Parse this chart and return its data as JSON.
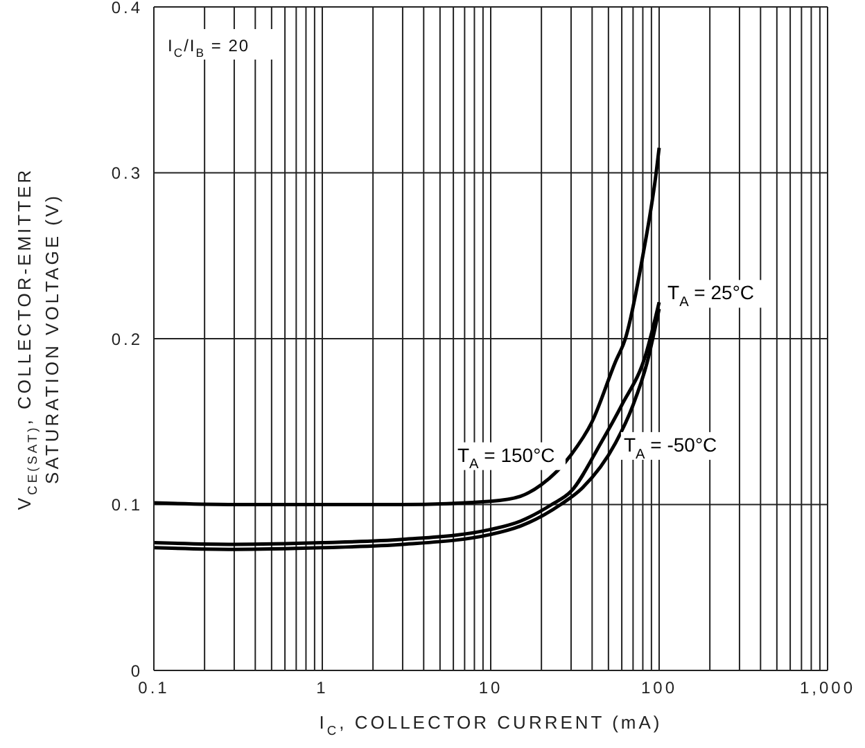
{
  "chart_data": {
    "type": "line",
    "xlabel": "I$_{C}$, COLLECTOR CURRENT (mA)",
    "ylabel": "V$_{CE(SAT)}$, COLLECTOR-EMITTER SATURATION VOLTAGE (V)",
    "annotations": [
      "I$_{C}$/I$_{B}$ = 20"
    ],
    "log": "x",
    "grid": true,
    "legend": false,
    "marker": "none",
    "line_style": "solid",
    "xlim": [
      0.1,
      1000
    ],
    "ylim": [
      0,
      0.4
    ],
    "xticks": [
      0.1,
      {
        "value": 0.2,
        "label": null
      },
      {
        "value": 0.3,
        "label": null
      },
      {
        "value": 0.4,
        "label": null
      },
      {
        "value": 0.5,
        "label": null
      },
      {
        "value": 0.6,
        "label": null
      },
      {
        "value": 0.7,
        "label": null
      },
      {
        "value": 0.8,
        "label": null
      },
      {
        "value": 0.9,
        "label": null
      },
      1,
      {
        "value": 2,
        "label": null
      },
      {
        "value": 3,
        "label": null
      },
      {
        "value": 4,
        "label": null
      },
      {
        "value": 5,
        "label": null
      },
      {
        "value": 6,
        "label": null
      },
      {
        "value": 7,
        "label": null
      },
      {
        "value": 8,
        "label": null
      },
      {
        "value": 9,
        "label": null
      },
      10,
      {
        "value": 20,
        "label": null
      },
      {
        "value": 30,
        "label": null
      },
      {
        "value": 40,
        "label": null
      },
      {
        "value": 50,
        "label": null
      },
      {
        "value": 60,
        "label": null
      },
      {
        "value": 70,
        "label": null
      },
      {
        "value": 80,
        "label": null
      },
      {
        "value": 90,
        "label": null
      },
      100,
      {
        "value": 200,
        "label": null
      },
      {
        "value": 300,
        "label": null
      },
      {
        "value": 400,
        "label": null
      },
      {
        "value": 500,
        "label": null
      },
      {
        "value": 600,
        "label": null
      },
      {
        "value": 700,
        "label": null
      },
      {
        "value": 800,
        "label": null
      },
      {
        "value": 900,
        "label": null
      },
      {
        "value": 1000,
        "label": "1,000"
      }
    ],
    "yticks": [
      0,
      0.1,
      0.2,
      0.3,
      0.4
    ],
    "series": [
      {
        "name": "T$_{A}$ = 150°C",
        "color": "#000000",
        "x": [
          0.1,
          0.3,
          1,
          3,
          10,
          15,
          20,
          30,
          40,
          55,
          63,
          80,
          96,
          100
        ],
        "values": [
          0.101,
          0.1,
          0.1,
          0.1,
          0.102,
          0.105,
          0.112,
          0.13,
          0.15,
          0.186,
          0.2,
          0.25,
          0.3,
          0.315
        ]
      },
      {
        "name": "T$_{A}$ = 25°C",
        "color": "#000000",
        "x": [
          0.1,
          0.3,
          1,
          3,
          10,
          15,
          23,
          30,
          45,
          60,
          83,
          100
        ],
        "values": [
          0.077,
          0.076,
          0.077,
          0.079,
          0.085,
          0.09,
          0.1,
          0.108,
          0.137,
          0.16,
          0.19,
          0.222
        ]
      },
      {
        "name": "T$_{A}$ = -50°C",
        "color": "#000000",
        "x": [
          0.1,
          0.3,
          1,
          3,
          10,
          15,
          26,
          35,
          55,
          70,
          85,
          100
        ],
        "values": [
          0.074,
          0.073,
          0.074,
          0.076,
          0.082,
          0.087,
          0.1,
          0.11,
          0.137,
          0.16,
          0.186,
          0.218
        ]
      }
    ]
  }
}
